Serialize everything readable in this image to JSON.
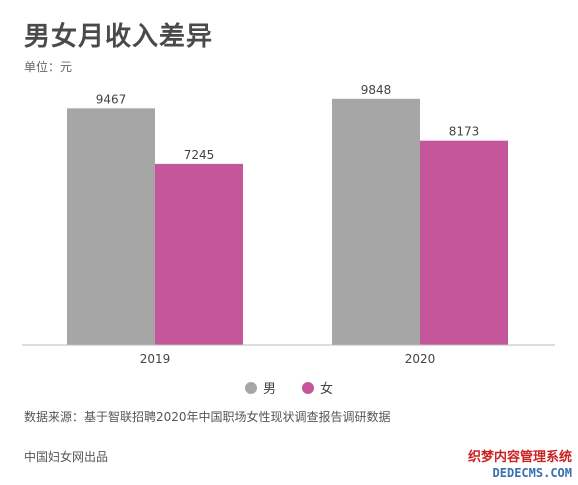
{
  "header": {
    "title": "男女月收入差异",
    "unit": "单位：元"
  },
  "legend": {
    "male": "男",
    "female": "女"
  },
  "footer": {
    "source": "数据来源：基于智联招聘2020年中国职场女性现状调查报告调研数据",
    "producer": "中国妇女网出品"
  },
  "watermark": {
    "line1": "织梦内容管理系统",
    "line2": "DEDECMS.COM"
  },
  "colors": {
    "male": "#a6a6a6",
    "female": "#c6569c"
  },
  "chart_data": {
    "type": "bar",
    "categories": [
      "2019",
      "2020"
    ],
    "series": [
      {
        "name": "男",
        "values": [
          9467,
          9848
        ]
      },
      {
        "name": "女",
        "values": [
          7245,
          8173
        ]
      }
    ],
    "title": "男女月收入差异",
    "ylabel": "单位：元",
    "ylim": [
      0,
      10000
    ],
    "grid": false,
    "legend": "bottom-center"
  }
}
